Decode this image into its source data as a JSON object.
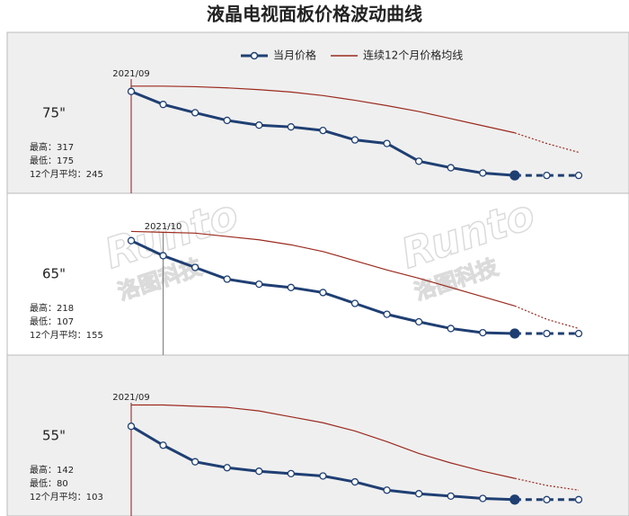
{
  "title": "液晶电视面板价格波动曲线",
  "watermark": [
    "Runto",
    "洛图科技"
  ],
  "chart_data": [
    {
      "type": "line",
      "label": "75\"",
      "stats": [
        "最高：317",
        "最低：175",
        "12个月平均：245"
      ],
      "categories": [
        "2021/09",
        null,
        null,
        null,
        null,
        null,
        null,
        null,
        null,
        null,
        null,
        null,
        null,
        null,
        null
      ],
      "marker_color": "#8b1a1a",
      "projection_start": 12,
      "ylim": [
        160,
        350
      ],
      "series": [
        {
          "name": "当月价格",
          "color": "#1f3f73",
          "values": [
            317,
            295,
            281,
            268,
            260,
            257,
            251,
            235,
            229,
            199,
            188,
            179,
            175,
            175,
            175
          ]
        },
        {
          "name": "连续12个月价格均线",
          "color": "#9b2a1e",
          "values": [
            326,
            326,
            325,
            323,
            320,
            316,
            310,
            302,
            293,
            283,
            271,
            259,
            247,
            229,
            214
          ]
        }
      ]
    },
    {
      "type": "line",
      "label": "65\"",
      "stats": [
        "最高：218",
        "最低：107",
        "12个月平均：155"
      ],
      "categories": [
        null,
        "2021/10",
        null,
        null,
        null,
        null,
        null,
        null,
        null,
        null,
        null,
        null,
        null,
        null,
        null
      ],
      "marker_color": "#777777",
      "projection_start": 12,
      "ylim": [
        92,
        237
      ],
      "series": [
        {
          "color": "#1f3f73",
          "values": [
            218,
            200,
            186,
            172,
            166,
            162,
            156,
            143,
            130,
            121,
            113,
            108,
            107,
            107,
            107
          ]
        },
        {
          "color": "#9b2a1e",
          "values": [
            229,
            228,
            227,
            223,
            219,
            213,
            205,
            194,
            183,
            173,
            162,
            151,
            140,
            124,
            113
          ]
        }
      ]
    },
    {
      "type": "line",
      "label": "55\"",
      "stats": [
        "最高：142",
        "最低：80",
        "12个月平均：103"
      ],
      "categories": [
        "2021/09",
        null,
        null,
        null,
        null,
        null,
        null,
        null,
        null,
        null,
        null,
        null,
        null,
        null,
        null
      ],
      "marker_color": "#8b1a1a",
      "projection_start": 12,
      "ylim": [
        73,
        168
      ],
      "series": [
        {
          "color": "#1f3f73",
          "values": [
            142,
            126,
            112,
            107,
            104,
            102,
            100,
            95,
            88,
            85,
            83,
            81,
            80,
            80,
            80
          ]
        },
        {
          "color": "#9b2a1e",
          "values": [
            160,
            160,
            159,
            158,
            155,
            150,
            145,
            138,
            129,
            119,
            111,
            104,
            98,
            92,
            88
          ]
        }
      ]
    }
  ]
}
